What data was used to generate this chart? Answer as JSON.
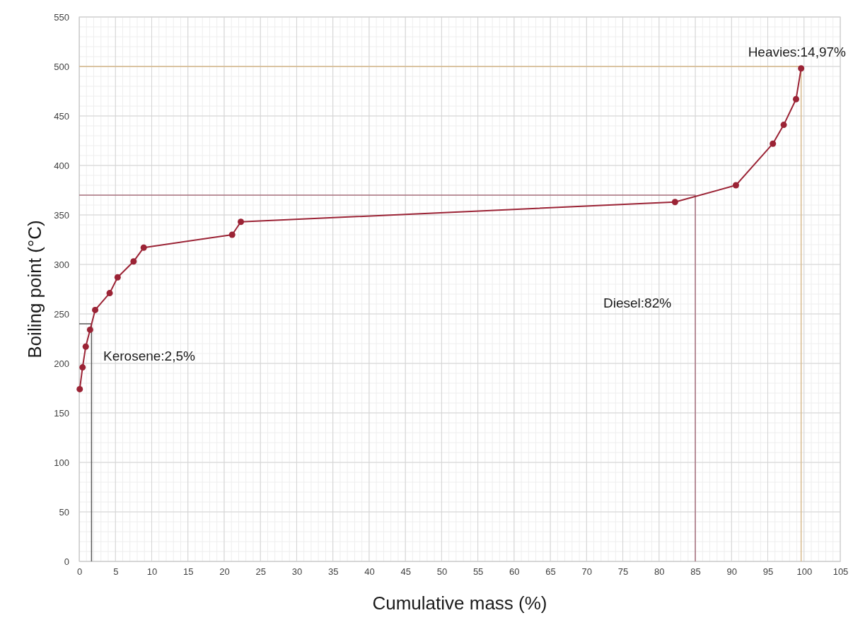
{
  "chart_data": {
    "type": "line",
    "xlabel": "Cumulative mass (%)",
    "ylabel": "Boiling point (°C)",
    "xlim": [
      0,
      105
    ],
    "xticks": [
      0,
      5,
      10,
      15,
      20,
      25,
      30,
      35,
      40,
      45,
      50,
      55,
      60,
      65,
      70,
      75,
      80,
      85,
      90,
      95,
      100,
      105
    ],
    "ylim": [
      0,
      550
    ],
    "yticks": [
      0,
      50,
      100,
      150,
      200,
      250,
      300,
      350,
      400,
      450,
      500,
      550
    ],
    "grid": true,
    "marker": "circle",
    "line_style": "solid",
    "series": [
      {
        "color": "#595959",
        "marker": "none",
        "x": [
          0,
          1.7,
          1.7
        ],
        "values": [
          240,
          240,
          0
        ]
      },
      {
        "color": "#a8707e",
        "marker": "none",
        "x": [
          0,
          85,
          85
        ],
        "values": [
          370,
          370,
          0
        ]
      },
      {
        "color": "#d6b98c",
        "marker": "none",
        "x": [
          0,
          99.6,
          99.6
        ],
        "values": [
          500,
          500,
          0
        ]
      },
      {
        "color": "#9b2335",
        "x": [
          0.07,
          0.46,
          0.9,
          1.5,
          2.2,
          4.2,
          5.3,
          7.5,
          8.9,
          21.1,
          22.3,
          82.2,
          90.6,
          95.7,
          97.2,
          98.9,
          99.6
        ],
        "values": [
          174,
          196,
          217,
          234,
          254,
          271,
          287,
          303,
          317,
          330,
          343,
          363,
          380,
          422,
          441,
          467,
          498
        ]
      }
    ],
    "annotations": [
      "Kerosene:2,5%",
      "Diesel:82%",
      "Heavies:14,97%"
    ]
  }
}
